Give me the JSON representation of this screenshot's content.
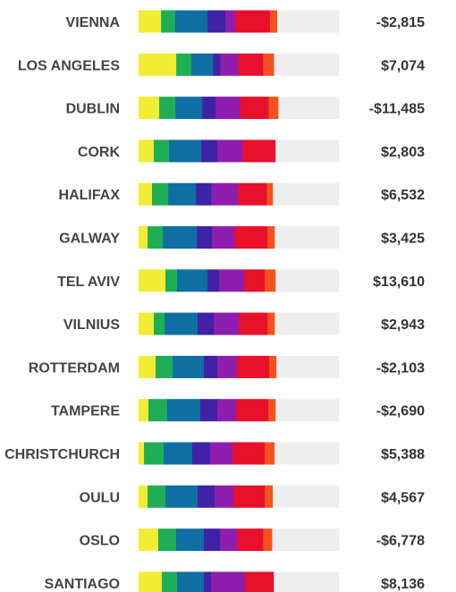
{
  "chart_data": {
    "type": "bar",
    "subtype": "stacked-horizontal",
    "title": "",
    "xlabel": "",
    "ylabel": "",
    "grid": false,
    "legend": "none",
    "xlim": [
      0,
      100
    ],
    "segment_colors": [
      "#f2ec35",
      "#1fae55",
      "#0f6fa3",
      "#3f22a6",
      "#8e1fae",
      "#e8102a",
      "#f4511e",
      "#eeeeee"
    ],
    "categories": [
      "VIENNA",
      "LOS ANGELES",
      "DUBLIN",
      "CORK",
      "HALIFAX",
      "GALWAY",
      "TEL AVIV",
      "VILNIUS",
      "ROTTERDAM",
      "TAMPERE",
      "CHRISTCHURCH",
      "OULU",
      "OSLO",
      "SANTIAGO"
    ],
    "value_labels": [
      "-$2,815",
      "$7,074",
      "-$11,485",
      "$2,803",
      "$6,532",
      "$3,425",
      "$13,610",
      "$2,943",
      "-$2,103",
      "-$2,690",
      "$5,388",
      "$4,567",
      "-$6,778",
      "$8,136"
    ],
    "values": [
      -2815,
      7074,
      -11485,
      2803,
      6532,
      3425,
      13610,
      2943,
      -2103,
      -2690,
      5388,
      4567,
      -6778,
      8136
    ],
    "segments": [
      [
        11.2,
        7.1,
        16.1,
        8.9,
        4.9,
        17.4,
        3.6,
        30.8
      ],
      [
        18.8,
        7.6,
        10.8,
        3.6,
        8.9,
        12.5,
        5.4,
        32.4
      ],
      [
        10.3,
        8.1,
        13.4,
        6.7,
        12.1,
        14.3,
        4.9,
        30.2
      ],
      [
        7.6,
        7.6,
        16.1,
        8.1,
        12.5,
        16.5,
        0,
        31.6
      ],
      [
        6.7,
        8.1,
        13.9,
        7.6,
        13.4,
        14.3,
        3.1,
        32.9
      ],
      [
        4.5,
        7.6,
        17.0,
        7.6,
        11.2,
        16.5,
        3.6,
        32.0
      ],
      [
        13.4,
        5.8,
        15.2,
        5.8,
        12.5,
        10.3,
        5.4,
        31.6
      ],
      [
        7.6,
        5.4,
        16.5,
        8.1,
        12.5,
        14.3,
        3.6,
        32.0
      ],
      [
        8.5,
        8.5,
        15.6,
        6.7,
        9.8,
        16.1,
        3.6,
        31.2
      ],
      [
        4.9,
        9.4,
        16.5,
        8.5,
        9.4,
        16.1,
        3.6,
        31.6
      ],
      [
        2.7,
        9.8,
        14.3,
        8.9,
        11.2,
        16.1,
        4.9,
        32.1
      ],
      [
        4.5,
        8.9,
        16.1,
        8.5,
        9.4,
        15.6,
        4.0,
        33.0
      ],
      [
        9.8,
        8.9,
        13.9,
        8.1,
        8.5,
        13.0,
        4.5,
        33.3
      ],
      [
        11.6,
        7.6,
        13.4,
        3.6,
        17.0,
        14.3,
        0,
        32.5
      ]
    ]
  }
}
